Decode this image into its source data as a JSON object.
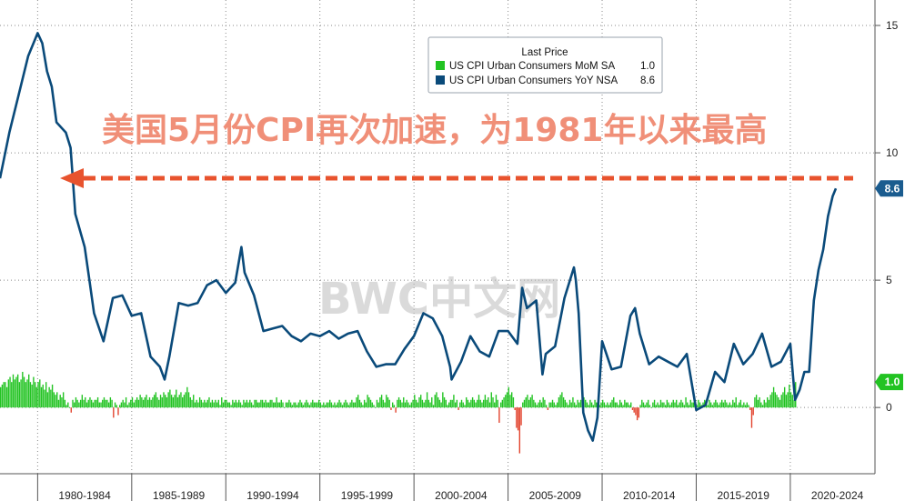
{
  "chart_data": {
    "type": "line",
    "xlim": [
      1978.0,
      2024.5
    ],
    "ylim": [
      -2.6,
      16.0
    ],
    "x_tick_labels": [
      "1980-1984",
      "1985-1989",
      "1990-1994",
      "1995-1999",
      "2000-2004",
      "2005-2009",
      "2010-2014",
      "2015-2019",
      "2020-2024"
    ],
    "y_ticks": [
      0,
      5,
      10,
      15
    ],
    "y_tick_labels": [
      "0",
      "5",
      "10",
      "15"
    ],
    "legend": {
      "title": "Last Price",
      "position": "top-center",
      "entries": [
        {
          "label": "US CPI Urban Consumers MoM SA",
          "value": "1.0",
          "color": "#22c322"
        },
        {
          "label": "US CPI Urban Consumers YoY NSA",
          "value": "8.6",
          "color": "#0a4a7a"
        }
      ]
    },
    "last_value_tags": [
      {
        "value": 8.6,
        "label": "8.6",
        "color": "#1a5c8f"
      },
      {
        "value": 1.0,
        "label": "1.0",
        "color": "#22c322"
      }
    ],
    "annotation": "美国5月份CPI再次加速，为1981年以来最高",
    "watermark": "BWC中文网",
    "yoy": {
      "x": [
        1978.0,
        1978.5,
        1979.0,
        1979.5,
        1980.0,
        1980.25,
        1980.5,
        1980.75,
        1981.0,
        1981.5,
        1981.75,
        1982.0,
        1982.5,
        1982.75,
        1983.0,
        1983.5,
        1984.0,
        1984.5,
        1985.0,
        1985.5,
        1986.0,
        1986.5,
        1986.75,
        1987.0,
        1987.5,
        1988.0,
        1988.5,
        1989.0,
        1989.5,
        1990.0,
        1990.5,
        1990.83,
        1991.0,
        1991.5,
        1992.0,
        1992.5,
        1993.0,
        1993.5,
        1994.0,
        1994.5,
        1995.0,
        1995.5,
        1996.0,
        1996.5,
        1997.0,
        1997.5,
        1998.0,
        1998.5,
        1999.0,
        1999.5,
        2000.0,
        2000.5,
        2001.0,
        2001.5,
        2001.92,
        2002.0,
        2002.5,
        2003.0,
        2003.5,
        2004.0,
        2004.5,
        2005.0,
        2005.5,
        2005.75,
        2006.0,
        2006.5,
        2006.83,
        2007.0,
        2007.5,
        2008.0,
        2008.5,
        2008.6,
        2008.75,
        2009.0,
        2009.25,
        2009.5,
        2009.75,
        2010.0,
        2010.5,
        2011.0,
        2011.5,
        2011.75,
        2012.0,
        2012.5,
        2013.0,
        2013.5,
        2014.0,
        2014.5,
        2015.0,
        2015.5,
        2016.0,
        2016.5,
        2017.0,
        2017.5,
        2018.0,
        2018.5,
        2019.0,
        2019.5,
        2020.0,
        2020.25,
        2020.5,
        2020.75,
        2021.0,
        2021.25,
        2021.5,
        2021.75,
        2022.0,
        2022.25,
        2022.42
      ],
      "values": [
        9.0,
        10.8,
        12.3,
        13.8,
        14.7,
        14.3,
        13.2,
        12.6,
        11.2,
        10.8,
        10.2,
        7.6,
        6.3,
        5.0,
        3.7,
        2.6,
        4.3,
        4.4,
        3.6,
        3.7,
        2.0,
        1.6,
        1.1,
        2.0,
        4.1,
        4.0,
        4.1,
        4.8,
        5.0,
        4.5,
        4.9,
        6.3,
        5.3,
        4.4,
        3.0,
        3.1,
        3.2,
        2.8,
        2.6,
        2.9,
        2.8,
        3.0,
        2.7,
        2.9,
        3.0,
        2.2,
        1.6,
        1.7,
        1.7,
        2.3,
        2.8,
        3.7,
        3.5,
        2.8,
        1.6,
        1.1,
        1.8,
        2.8,
        2.2,
        2.0,
        3.0,
        3.0,
        2.5,
        4.7,
        3.9,
        4.2,
        1.3,
        2.1,
        2.4,
        4.3,
        5.5,
        5.0,
        3.7,
        -0.2,
        -0.9,
        -1.3,
        -0.4,
        2.6,
        1.5,
        1.6,
        3.6,
        3.9,
        2.9,
        1.7,
        2.0,
        1.8,
        1.6,
        2.1,
        -0.1,
        0.1,
        1.4,
        1.0,
        2.5,
        1.7,
        2.1,
        2.9,
        1.6,
        1.8,
        2.5,
        0.3,
        0.7,
        1.4,
        1.4,
        4.2,
        5.4,
        6.2,
        7.5,
        8.3,
        8.6
      ]
    },
    "mom": {
      "x_start": 1978.0,
      "x_step": 0.08333,
      "values": [
        0.8,
        0.9,
        1.0,
        1.0,
        0.8,
        1.1,
        1.2,
        1.0,
        1.3,
        1.1,
        1.2,
        1.3,
        1.0,
        1.1,
        1.4,
        1.2,
        1.0,
        1.1,
        1.3,
        1.0,
        0.9,
        1.2,
        1.0,
        0.8,
        1.0,
        1.1,
        0.8,
        0.9,
        0.7,
        1.0,
        0.6,
        0.8,
        0.7,
        0.9,
        0.6,
        0.5,
        0.6,
        0.3,
        0.5,
        0.4,
        0.6,
        0.3,
        0.1,
        0.2,
        0.0,
        -0.2,
        0.3,
        0.2,
        0.4,
        0.3,
        0.2,
        0.3,
        0.5,
        0.3,
        0.4,
        0.2,
        0.3,
        0.4,
        0.3,
        0.2,
        0.3,
        0.3,
        0.4,
        0.2,
        0.2,
        0.3,
        0.4,
        0.3,
        0.3,
        0.2,
        0.4,
        0.3,
        -0.4,
        0.2,
        0.1,
        -0.3,
        0.1,
        0.2,
        0.3,
        0.2,
        0.4,
        0.1,
        0.2,
        0.3,
        0.4,
        0.2,
        0.3,
        0.4,
        0.3,
        0.5,
        0.4,
        0.3,
        0.4,
        0.5,
        0.3,
        0.4,
        0.3,
        0.4,
        0.5,
        0.6,
        0.4,
        0.3,
        0.5,
        0.4,
        0.6,
        0.5,
        0.4,
        0.6,
        0.7,
        0.5,
        0.4,
        0.5,
        0.7,
        0.4,
        0.5,
        0.6,
        0.4,
        0.5,
        0.6,
        0.8,
        0.6,
        0.4,
        0.3,
        0.5,
        0.2,
        0.3,
        0.2,
        0.4,
        0.3,
        0.2,
        0.3,
        0.2,
        0.3,
        0.4,
        0.2,
        0.3,
        0.2,
        0.3,
        0.2,
        0.3,
        0.1,
        0.4,
        0.2,
        0.3,
        0.3,
        0.2,
        0.2,
        0.1,
        0.3,
        0.2,
        0.3,
        0.2,
        0.3,
        0.2,
        0.1,
        0.3,
        0.2,
        0.3,
        0.2,
        0.3,
        0.2,
        0.1,
        0.3,
        0.3,
        0.2,
        0.2,
        0.3,
        0.3,
        0.2,
        0.3,
        0.2,
        0.2,
        0.3,
        0.3,
        0.2,
        0.2,
        0.4,
        0.2,
        0.2,
        0.3,
        0.2,
        0.0,
        0.2,
        0.2,
        0.3,
        0.2,
        0.1,
        0.2,
        0.2,
        0.1,
        0.2,
        0.3,
        0.2,
        0.1,
        0.2,
        0.3,
        0.2,
        0.1,
        0.2,
        0.3,
        0.2,
        0.2,
        0.2,
        0.3,
        0.2,
        0.1,
        0.2,
        0.1,
        0.2,
        0.2,
        0.3,
        0.2,
        0.1,
        0.2,
        0.1,
        0.2,
        0.3,
        0.2,
        0.1,
        0.2,
        0.3,
        0.2,
        0.1,
        0.2,
        0.3,
        0.2,
        0.2,
        0.4,
        0.5,
        0.3,
        0.2,
        0.1,
        0.3,
        0.2,
        0.5,
        0.4,
        0.3,
        0.2,
        0.1,
        0.0,
        0.3,
        0.2,
        0.4,
        0.5,
        0.3,
        0.2,
        0.5,
        0.4,
        0.3,
        -0.1,
        0.2,
        0.1,
        -0.2,
        0.3,
        0.4,
        0.3,
        0.2,
        0.4,
        0.2,
        0.3,
        0.2,
        0.1,
        0.2,
        0.3,
        0.5,
        0.3,
        0.2,
        0.4,
        0.5,
        0.3,
        0.2,
        0.3,
        0.6,
        0.3,
        0.2,
        0.4,
        0.1,
        0.5,
        0.6,
        0.4,
        0.3,
        0.2,
        0.6,
        0.4,
        0.3,
        0.1,
        0.2,
        0.3,
        0.3,
        0.5,
        0.2,
        0.3,
        -0.1,
        0.2,
        0.3,
        0.2,
        0.1,
        0.4,
        0.3,
        0.2,
        0.3,
        0.4,
        0.3,
        0.2,
        0.3,
        0.5,
        0.3,
        0.2,
        0.3,
        0.5,
        0.3,
        0.4,
        0.2,
        0.6,
        0.4,
        0.2,
        0.5,
        0.3,
        -0.6,
        0.2,
        0.3,
        0.4,
        0.5,
        0.6,
        0.8,
        0.5,
        0.6,
        0.4,
        -0.1,
        -0.8,
        -0.9,
        -1.8,
        -0.7,
        0.2,
        0.3,
        0.4,
        0.5,
        0.3,
        0.4,
        0.5,
        0.3,
        0.2,
        0.1,
        0.2,
        0.3,
        0.2,
        0.4,
        0.3,
        0.1,
        -0.1,
        0.2,
        0.2,
        0.3,
        0.2,
        0.1,
        0.2,
        0.4,
        0.5,
        0.6,
        0.4,
        0.3,
        0.2,
        0.1,
        0.3,
        0.2,
        0.4,
        0.2,
        0.1,
        0.3,
        0.2,
        0.3,
        0.5,
        0.4,
        0.3,
        0.2,
        0.1,
        0.3,
        0.2,
        0.1,
        0.3,
        0.2,
        0.2,
        0.1,
        0.2,
        0.3,
        0.2,
        0.1,
        0.2,
        0.1,
        0.2,
        0.3,
        0.4,
        0.2,
        0.2,
        0.1,
        0.3,
        0.2,
        0.1,
        0.3,
        0.2,
        0.2,
        0.1,
        0.2,
        -0.1,
        -0.2,
        -0.3,
        -0.5,
        -0.4,
        0.1,
        0.3,
        0.2,
        0.1,
        0.2,
        0.3,
        0.1,
        0.0,
        0.2,
        0.3,
        0.1,
        0.2,
        0.1,
        0.3,
        0.2,
        0.2,
        0.1,
        0.3,
        0.2,
        0.1,
        0.2,
        0.3,
        0.2,
        0.3,
        0.1,
        0.2,
        0.3,
        0.2,
        0.1,
        0.4,
        0.2,
        0.1,
        0.3,
        0.2,
        0.2,
        0.3,
        0.1,
        0.3,
        0.2,
        0.1,
        0.2,
        0.3,
        0.2,
        0.1,
        0.3,
        0.2,
        0.1,
        0.2,
        0.3,
        0.2,
        0.1,
        0.2,
        0.3,
        0.2,
        0.3,
        0.2,
        0.1,
        0.2,
        0.1,
        0.3,
        0.2,
        0.4,
        0.1,
        0.2,
        0.3,
        0.1,
        0.2,
        0.1,
        0.2,
        0.1,
        -0.1,
        -0.8,
        -0.3,
        0.4,
        0.5,
        0.3,
        0.4,
        0.2,
        0.1,
        0.3,
        0.2,
        0.4,
        0.3,
        0.5,
        0.6,
        0.8,
        0.6,
        0.5,
        0.4,
        0.3,
        0.5,
        0.6,
        0.8,
        0.5,
        0.6,
        0.9,
        0.6,
        0.5,
        0.3,
        1.0
      ]
    }
  }
}
